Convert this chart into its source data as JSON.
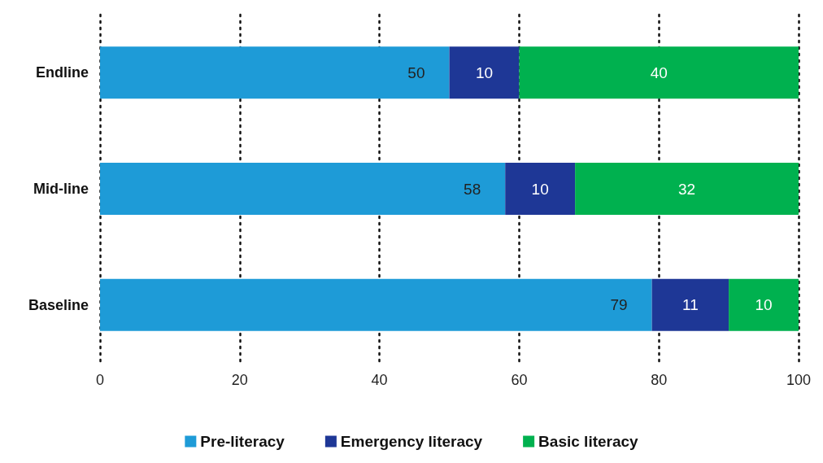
{
  "chart_data": {
    "type": "bar",
    "orientation": "horizontal",
    "stacked": true,
    "categories": [
      "Endline",
      "Mid-line",
      "Baseline"
    ],
    "series": [
      {
        "name": "Pre-literacy",
        "color": "#1e9bd7",
        "values": [
          50,
          58,
          79
        ]
      },
      {
        "name": "Emergency literacy",
        "color": "#1e3796",
        "values": [
          10,
          10,
          11
        ]
      },
      {
        "name": "Basic literacy",
        "color": "#00b14f",
        "values": [
          40,
          32,
          10
        ]
      }
    ],
    "xlim": [
      0,
      100
    ],
    "xticks": [
      0,
      20,
      40,
      60,
      80,
      100
    ],
    "grid": "x",
    "legend": "bottom",
    "data_labels": true
  }
}
